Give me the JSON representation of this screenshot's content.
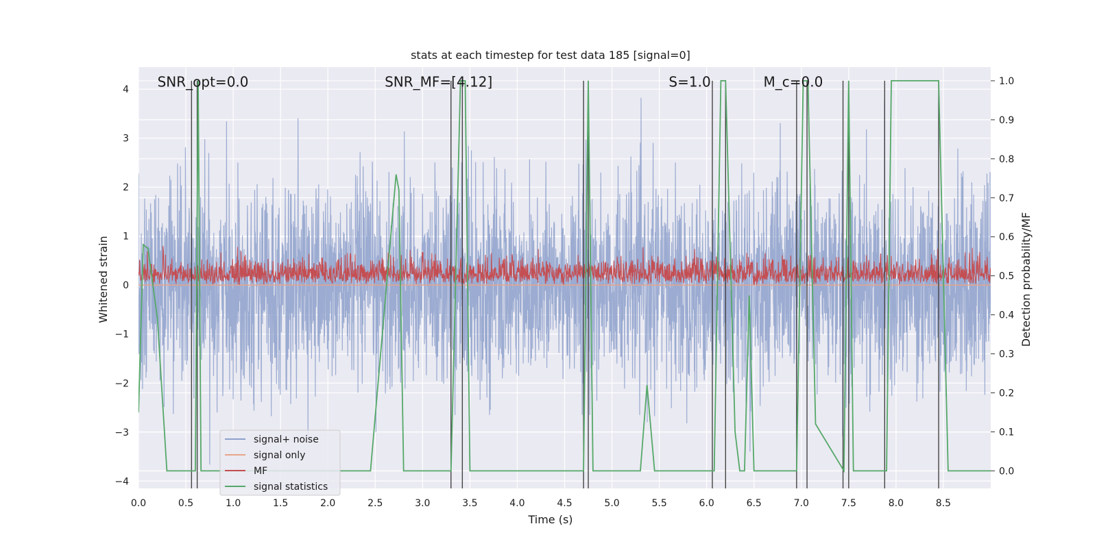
{
  "chart_data": {
    "type": "line",
    "title": "stats at each timestep for test data 185 [signal=0]",
    "xlabel": "Time (s)",
    "ylabel": "Whitened strain",
    "y2label": "Detection probability/MF",
    "xlim": [
      0,
      9.0
    ],
    "ylim": [
      -4.15,
      4.45
    ],
    "y2lim": [
      -0.045,
      1.035
    ],
    "xticks": [
      0.0,
      0.5,
      1.0,
      1.5,
      2.0,
      2.5,
      3.0,
      3.5,
      4.0,
      4.5,
      5.0,
      5.5,
      6.0,
      6.5,
      7.0,
      7.5,
      8.0,
      8.5
    ],
    "xtick_labels": [
      "0.0",
      "0.5",
      "1.0",
      "1.5",
      "2.0",
      "2.5",
      "3.0",
      "3.5",
      "4.0",
      "4.5",
      "5.0",
      "5.5",
      "6.0",
      "6.5",
      "7.0",
      "7.5",
      "8.0",
      "8.5"
    ],
    "yticks": [
      -4,
      -3,
      -2,
      -1,
      0,
      1,
      2,
      3,
      4
    ],
    "ytick_labels": [
      "−4",
      "−3",
      "−2",
      "−1",
      "0",
      "1",
      "2",
      "3",
      "4"
    ],
    "y2ticks": [
      0.0,
      0.1,
      0.2,
      0.3,
      0.4,
      0.5,
      0.6,
      0.7,
      0.8,
      0.9,
      1.0
    ],
    "y2tick_labels": [
      "0.0",
      "0.1",
      "0.2",
      "0.3",
      "0.4",
      "0.5",
      "0.6",
      "0.7",
      "0.8",
      "0.9",
      "1.0"
    ],
    "grid": true,
    "legend_position": "lower-left",
    "annotations": [
      {
        "text": "SNR_opt=0.0",
        "x": 0.2,
        "y": 4.05
      },
      {
        "text": "SNR_MF=[4.12]",
        "x": 2.6,
        "y": 4.05
      },
      {
        "text": "S=1.0",
        "x": 5.6,
        "y": 4.05
      },
      {
        "text": "M_c=0.0",
        "x": 6.6,
        "y": 4.05
      }
    ],
    "series": [
      {
        "name": "signal+ noise",
        "axis": "left",
        "color": "#8da0cb",
        "kind": "noise",
        "sigma": 1.0
      },
      {
        "name": "signal only",
        "axis": "left",
        "color": "#e8a58a",
        "kind": "flat",
        "value": 0.0
      },
      {
        "name": "MF",
        "axis": "left",
        "color": "#c44e52",
        "kind": "mf"
      },
      {
        "name": "signal statistics",
        "axis": "right",
        "color": "#55a868",
        "x": [
          0.0,
          0.05,
          0.1,
          0.2,
          0.3,
          0.6,
          0.63,
          0.66,
          0.7,
          2.45,
          2.72,
          2.75,
          2.8,
          3.3,
          3.4,
          3.45,
          3.5,
          3.55,
          4.7,
          4.75,
          4.8,
          5.3,
          5.37,
          5.45,
          6.08,
          6.15,
          6.2,
          6.3,
          6.35,
          6.4,
          6.45,
          6.5,
          6.95,
          7.02,
          7.07,
          7.15,
          7.45,
          7.5,
          7.55,
          7.9,
          7.95,
          8.45,
          8.55,
          9.0
        ],
        "y": [
          0.15,
          0.58,
          0.57,
          0.39,
          0.0,
          0.0,
          1.0,
          0.0,
          0.0,
          0.0,
          0.76,
          0.72,
          0.0,
          0.0,
          1.0,
          1.0,
          0.0,
          0.0,
          0.0,
          1.0,
          0.0,
          0.0,
          0.22,
          0.0,
          0.0,
          1.0,
          1.0,
          0.1,
          0.0,
          0.0,
          0.45,
          0.0,
          0.0,
          1.0,
          1.0,
          0.12,
          0.0,
          1.0,
          0.0,
          0.0,
          1.0,
          1.0,
          0.0,
          0.0
        ]
      }
    ],
    "vlines": [
      0.56,
      0.62,
      3.3,
      3.42,
      4.7,
      4.75,
      6.06,
      6.2,
      6.95,
      7.06,
      7.44,
      7.5,
      7.88,
      8.45
    ]
  }
}
